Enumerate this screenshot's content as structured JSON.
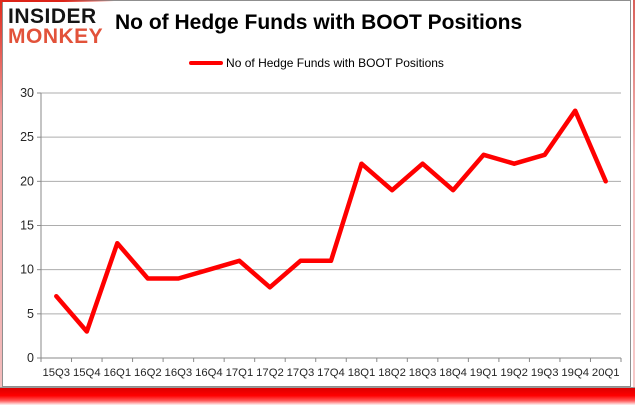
{
  "colors": {
    "series": "#ff0000",
    "grid": "#adadad",
    "axis": "#8a8a8a",
    "tick_text": "#262626",
    "title_text": "#000000",
    "logo_top": "#141414",
    "logo_bottom": "#e2523a",
    "frame_gray": "#8f8f8f",
    "accent_red": "#dd2418"
  },
  "logo": {
    "line1": "INSIDER",
    "line2": "MONKEY"
  },
  "header": {
    "title": "No of Hedge Funds with BOOT Positions"
  },
  "legend": {
    "label": "No of Hedge Funds with BOOT Positions"
  },
  "chart_data": {
    "type": "line",
    "title": "No of Hedge Funds with BOOT Positions",
    "categories": [
      "15Q3",
      "15Q4",
      "16Q1",
      "16Q2",
      "16Q3",
      "16Q4",
      "17Q1",
      "17Q2",
      "17Q3",
      "17Q4",
      "18Q1",
      "18Q2",
      "18Q3",
      "18Q4",
      "19Q1",
      "19Q2",
      "19Q3",
      "19Q4",
      "20Q1"
    ],
    "series": [
      {
        "name": "No of Hedge Funds with BOOT Positions",
        "color": "#ff0000",
        "values": [
          7,
          3,
          13,
          9,
          9,
          10,
          11,
          8,
          11,
          11,
          22,
          19,
          22,
          19,
          23,
          22,
          23,
          28,
          20
        ]
      }
    ],
    "xlabel": "",
    "ylabel": "",
    "ylim": [
      0,
      30
    ],
    "y_ticks": [
      0,
      5,
      10,
      15,
      20,
      25,
      30
    ],
    "grid": true,
    "legend_position": "top"
  }
}
